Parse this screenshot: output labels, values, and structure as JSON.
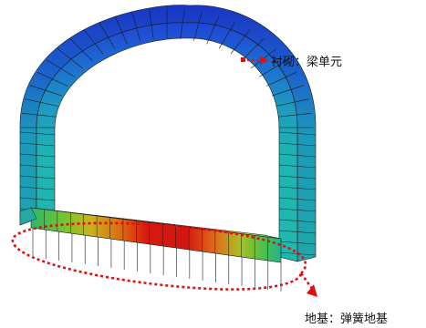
{
  "annotations": {
    "lining": "衬砌：梁单元",
    "foundation": "地基：弹簧地基"
  },
  "colors": {
    "arrow": "#e01010",
    "spring_line": "#555555",
    "mesh_line": "#1a1a1a"
  }
}
